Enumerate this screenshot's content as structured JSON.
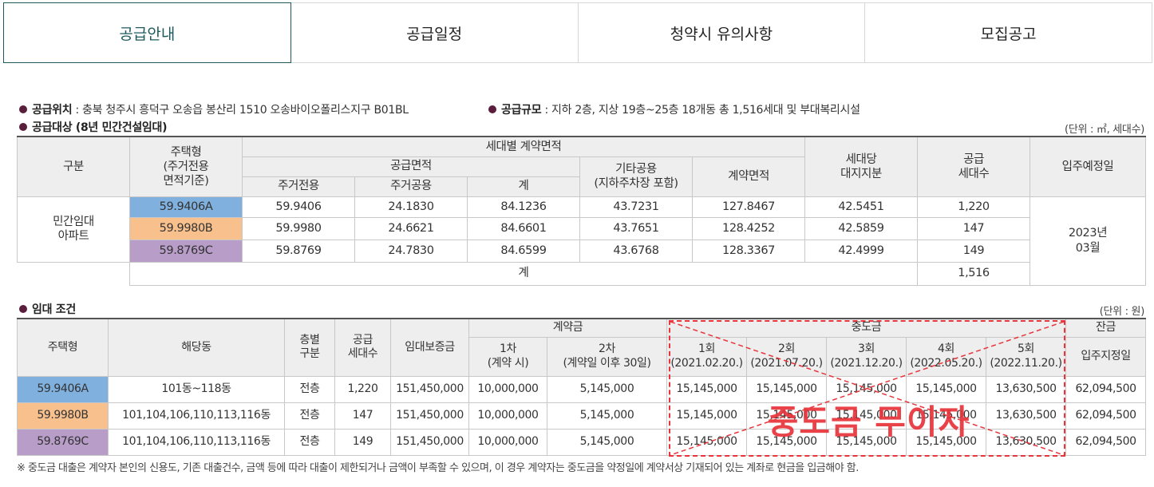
{
  "tabs": [
    "공급안내",
    "공급일정",
    "청약시 유의사항",
    "모집공고"
  ],
  "info": {
    "location_label": "공급위치",
    "location_value": " : 충북 청주시 흥덕구 오송읍 봉산리 1510 오송바이오폴리스지구 B01BL",
    "scale_label": "공급규모",
    "scale_value": " : 지하 2층, 지상 19층~25층 18개동 총 1,516세대 및 부대복리시설",
    "target_label": "공급대상 (8년 민간건설임대)",
    "unit1": "(단위 : ㎡, 세대수)",
    "rent_label": "임대 조건",
    "unit2": "(단위 : 원)"
  },
  "t1": {
    "h_gubun": "구분",
    "h_type": "주택형\n(주거전용\n면적기준)",
    "h_contract_area": "세대별 계약면적",
    "h_supply_area": "공급면적",
    "h_excl": "주거전용",
    "h_common": "주거공용",
    "h_sum": "계",
    "h_other": "기타공용\n(지하주차장 포함)",
    "h_contract": "계약면적",
    "h_land": "세대당\n대지지분",
    "h_units": "공급\n세대수",
    "h_move": "입주예정일",
    "category": "민간임대\n아파트",
    "move_date": "2023년\n03월",
    "rows": [
      {
        "type": "59.9406A",
        "excl": "59.9406",
        "common": "24.1830",
        "sum": "84.1236",
        "other": "43.7231",
        "contract": "127.8467",
        "land": "42.5451",
        "units": "1,220"
      },
      {
        "type": "59.9980B",
        "excl": "59.9980",
        "common": "24.6621",
        "sum": "84.6601",
        "other": "43.7651",
        "contract": "128.4252",
        "land": "42.5859",
        "units": "147"
      },
      {
        "type": "59.8769C",
        "excl": "59.8769",
        "common": "24.7830",
        "sum": "84.6599",
        "other": "43.6768",
        "contract": "128.3367",
        "land": "42.4999",
        "units": "149"
      }
    ],
    "total_label": "계",
    "total_units": "1,516"
  },
  "t2": {
    "h_type": "주택형",
    "h_dong": "해당동",
    "h_floor": "층별\n구분",
    "h_units": "공급\n세대수",
    "h_deposit": "임대보증금",
    "h_down": "계약금",
    "h_down1": "1차\n(계약 시)",
    "h_down2": "2차\n(계약일 이후 30일)",
    "h_mid": "중도금",
    "h_mid1": "1회\n(2021.02.20.)",
    "h_mid2": "2회\n(2021.07.20.)",
    "h_mid3": "3회\n(2021.12.20.)",
    "h_mid4": "4회\n(2022.05.20.)",
    "h_mid5": "5회\n(2022.11.20.)",
    "h_balance": "잔금",
    "h_balance_sub": "입주지정일",
    "rows": [
      {
        "type": "59.9406A",
        "dong": "101동~118동",
        "floor": "전층",
        "units": "1,220",
        "deposit": "151,450,000",
        "d1": "10,000,000",
        "d2": "5,145,000",
        "m1": "15,145,000",
        "m2": "15,145,000",
        "m3": "15,145,000",
        "m4": "15,145,000",
        "m5": "13,630,500",
        "bal": "62,094,500"
      },
      {
        "type": "59.9980B",
        "dong": "101,104,106,110,113,116동",
        "floor": "전층",
        "units": "147",
        "deposit": "151,450,000",
        "d1": "10,000,000",
        "d2": "5,145,000",
        "m1": "15,145,000",
        "m2": "15,145,000",
        "m3": "15,145,000",
        "m4": "15,145,000",
        "m5": "13,630,500",
        "bal": "62,094,500"
      },
      {
        "type": "59.8769C",
        "dong": "101,104,106,110,113,116동",
        "floor": "전층",
        "units": "149",
        "deposit": "151,450,000",
        "d1": "10,000,000",
        "d2": "5,145,000",
        "m1": "15,145,000",
        "m2": "15,145,000",
        "m3": "15,145,000",
        "m4": "15,145,000",
        "m5": "13,630,500",
        "bal": "62,094,500"
      }
    ]
  },
  "overlay_text": "중도금 무이자",
  "footnote": "※ 중도금 대출은 계약자 본인의 신용도, 기존 대출건수, 금액 등에 따라 대출이 제한되거나 금액이 부족할 수 있으며, 이 경우 계약자는 중도금을 약정일에 계약서상 기재되어 있는 계좌로 현금을 입금해야 함.",
  "colors": {
    "accent": "#1e5a5d",
    "type_a": "#7fb0de",
    "type_b": "#f8c08c",
    "type_c": "#b89dc9",
    "overlay": "#e8343a",
    "bullet": "#5a1e3c"
  }
}
